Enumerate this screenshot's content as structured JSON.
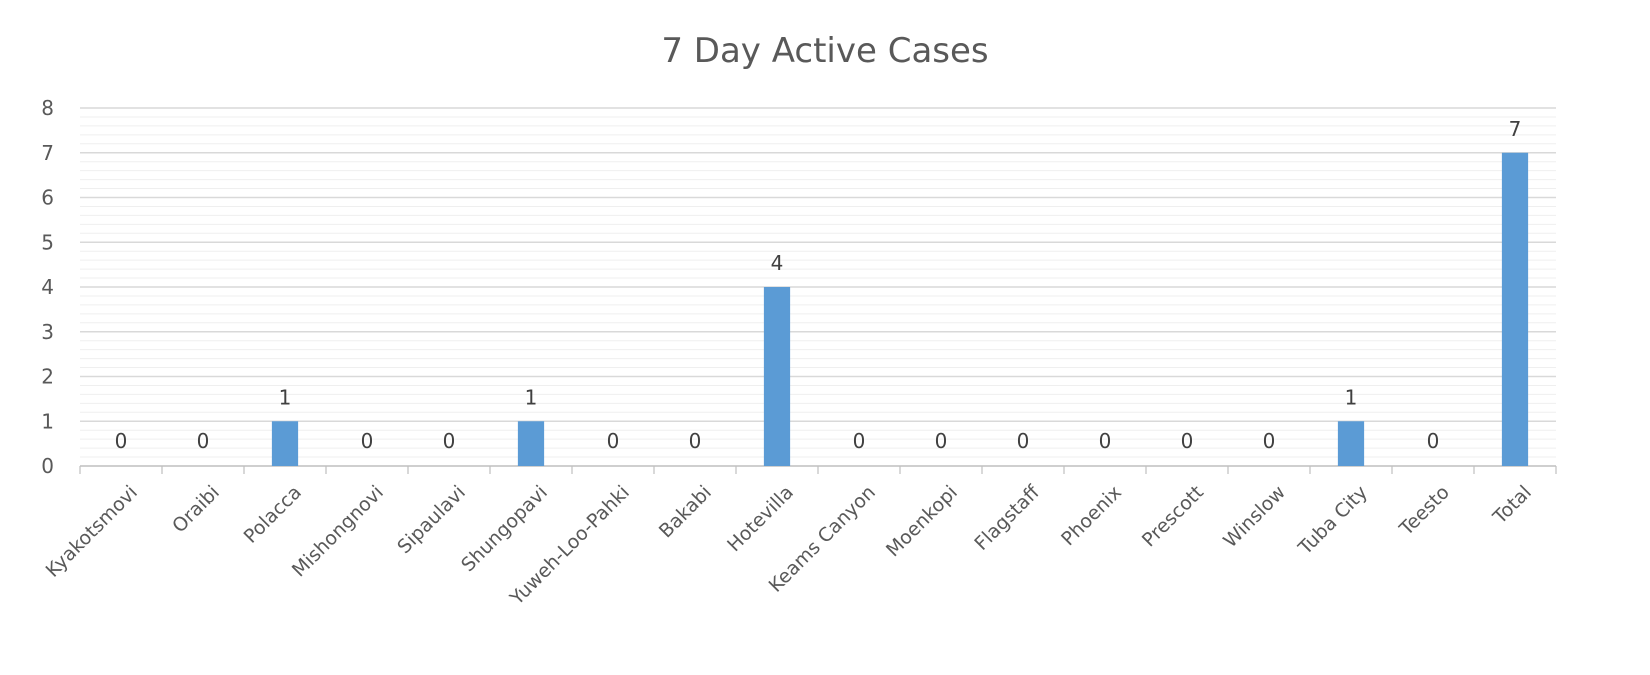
{
  "chart_data": {
    "type": "bar",
    "title": "7 Day Active Cases",
    "xlabel": "",
    "ylabel": "",
    "ylim": [
      0,
      8
    ],
    "yticks": [
      0,
      1,
      2,
      3,
      4,
      5,
      6,
      7,
      8
    ],
    "minor_grid_per_major": 5,
    "grid": true,
    "legend": "none",
    "bar_color": "#5b9bd5",
    "categories": [
      "Kyakotsmovi",
      "Oraibi",
      "Polacca",
      "Mishongnovi",
      "Sipaulavi",
      "Shungopavi",
      "Yuweh-Loo-Pahki",
      "Bakabi",
      "Hotevilla",
      "Keams Canyon",
      "Moenkopi",
      "Flagstaff",
      "Phoenix",
      "Prescott",
      "Winslow",
      "Tuba City",
      "Teesto",
      "Total"
    ],
    "values": [
      0,
      0,
      1,
      0,
      0,
      1,
      0,
      0,
      4,
      0,
      0,
      0,
      0,
      0,
      0,
      1,
      0,
      7
    ]
  }
}
